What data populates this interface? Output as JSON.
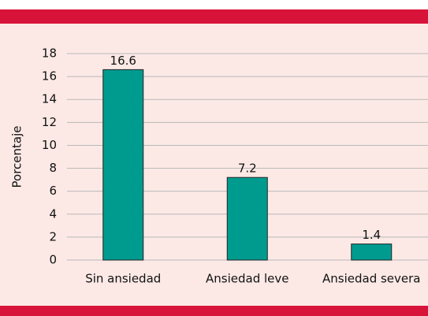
{
  "chart_data": {
    "type": "bar",
    "y_label": "Porcentaje",
    "categories": [
      "Sin ansiedad",
      "Ansiedad leve",
      "Ansiedad severa"
    ],
    "values": [
      16.6,
      7.2,
      1.4
    ],
    "color": "#009b8f",
    "ylim": [
      0,
      18
    ],
    "yticks": [
      0,
      2,
      4,
      6,
      8,
      10,
      12,
      14,
      16,
      18
    ],
    "grid": true
  }
}
